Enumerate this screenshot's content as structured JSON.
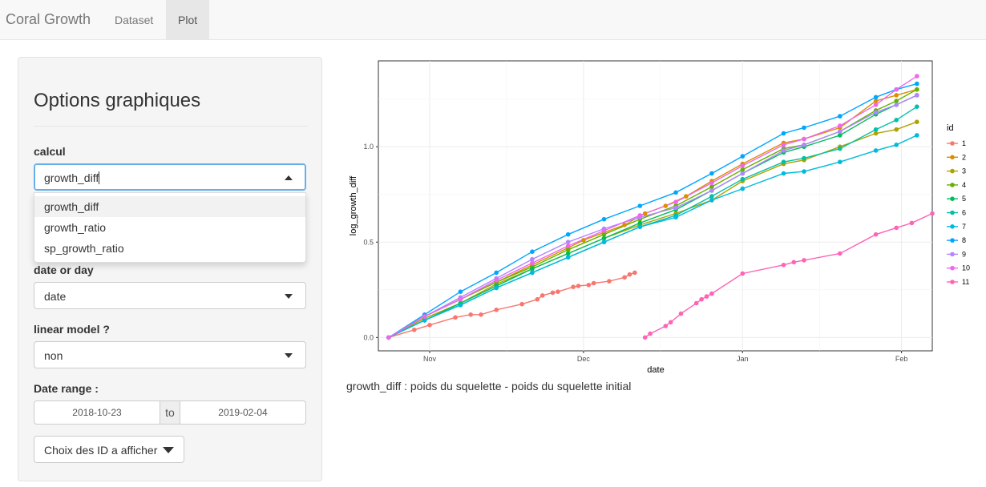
{
  "navbar": {
    "brand": "Coral Growth",
    "tabs": [
      {
        "label": "Dataset",
        "active": false
      },
      {
        "label": "Plot",
        "active": true
      }
    ]
  },
  "sidebar": {
    "title": "Options graphiques",
    "calcul": {
      "label": "calcul",
      "value": "growth_diff",
      "options": [
        "growth_diff",
        "growth_ratio",
        "sp_growth_ratio"
      ],
      "highlighted": "growth_diff"
    },
    "date_or_day": {
      "label": "date or day",
      "value": "date"
    },
    "linear_model": {
      "label": "linear model ?",
      "value": "non"
    },
    "date_range": {
      "label": "Date range :",
      "start": "2018-10-23",
      "separator": "to",
      "end": "2019-02-04"
    },
    "id_button": {
      "label": "Choix des ID a afficher"
    }
  },
  "caption": "growth_diff : poids du squelette - poids du squelette initial",
  "chart_data": {
    "type": "line",
    "xlabel": "date",
    "ylabel": "log_growth_diff",
    "x_ticks": [
      "Nov",
      "Dec",
      "Jan",
      "Feb"
    ],
    "y_ticks": [
      "0.0",
      "0.5",
      "1.0"
    ],
    "xlim": [
      "2018-10-22",
      "2019-02-07"
    ],
    "ylim": [
      -0.07,
      1.45
    ],
    "grid": true,
    "legend_title": "id",
    "legend_position": "right",
    "series": [
      {
        "name": "1",
        "color": "#F8766D",
        "points": [
          [
            "2018-10-24",
            0.0
          ],
          [
            "2018-10-29",
            0.04
          ],
          [
            "2018-11-01",
            0.065
          ],
          [
            "2018-11-06",
            0.105
          ],
          [
            "2018-11-09",
            0.12
          ],
          [
            "2018-11-11",
            0.12
          ],
          [
            "2018-11-14",
            0.145
          ],
          [
            "2018-11-19",
            0.175
          ],
          [
            "2018-11-22",
            0.2
          ],
          [
            "2018-11-23",
            0.22
          ],
          [
            "2018-11-25",
            0.235
          ],
          [
            "2018-11-26",
            0.24
          ],
          [
            "2018-11-29",
            0.265
          ],
          [
            "2018-11-30",
            0.27
          ],
          [
            "2018-12-02",
            0.275
          ],
          [
            "2018-12-03",
            0.285
          ],
          [
            "2018-12-06",
            0.295
          ],
          [
            "2018-12-09",
            0.315
          ],
          [
            "2018-12-10",
            0.33
          ],
          [
            "2018-12-11",
            0.34
          ]
        ]
      },
      {
        "name": "2",
        "color": "#DB8E00",
        "points": [
          [
            "2018-10-24",
            0.0
          ],
          [
            "2018-10-31",
            0.11
          ],
          [
            "2018-11-07",
            0.2
          ],
          [
            "2018-11-14",
            0.29
          ],
          [
            "2018-11-21",
            0.38
          ],
          [
            "2018-11-28",
            0.47
          ],
          [
            "2018-12-01",
            0.51
          ],
          [
            "2018-12-05",
            0.55
          ],
          [
            "2018-12-09",
            0.59
          ],
          [
            "2018-12-13",
            0.65
          ],
          [
            "2018-12-17",
            0.69
          ],
          [
            "2018-12-21",
            0.74
          ],
          [
            "2018-12-26",
            0.82
          ],
          [
            "2019-01-01",
            0.91
          ],
          [
            "2019-01-09",
            1.02
          ],
          [
            "2019-01-13",
            1.04
          ],
          [
            "2019-01-20",
            1.1
          ],
          [
            "2019-01-27",
            1.24
          ],
          [
            "2019-01-31",
            1.27
          ],
          [
            "2019-02-04",
            1.3
          ]
        ]
      },
      {
        "name": "3",
        "color": "#AEA200",
        "points": [
          [
            "2018-10-24",
            0.0
          ],
          [
            "2018-10-31",
            0.1
          ],
          [
            "2018-11-07",
            0.18
          ],
          [
            "2018-11-14",
            0.28
          ],
          [
            "2018-11-21",
            0.36
          ],
          [
            "2018-11-28",
            0.44
          ],
          [
            "2018-12-05",
            0.52
          ],
          [
            "2018-12-12",
            0.59
          ],
          [
            "2018-12-19",
            0.65
          ],
          [
            "2018-12-26",
            0.72
          ],
          [
            "2019-01-01",
            0.82
          ],
          [
            "2019-01-09",
            0.91
          ],
          [
            "2019-01-13",
            0.93
          ],
          [
            "2019-01-20",
            1.0
          ],
          [
            "2019-01-27",
            1.07
          ],
          [
            "2019-01-31",
            1.09
          ],
          [
            "2019-02-04",
            1.13
          ]
        ]
      },
      {
        "name": "4",
        "color": "#64B200",
        "points": [
          [
            "2018-10-24",
            0.0
          ],
          [
            "2018-10-31",
            0.11
          ],
          [
            "2018-11-07",
            0.2
          ],
          [
            "2018-11-14",
            0.29
          ],
          [
            "2018-11-21",
            0.37
          ],
          [
            "2018-11-28",
            0.46
          ],
          [
            "2018-12-05",
            0.54
          ],
          [
            "2018-12-12",
            0.62
          ],
          [
            "2018-12-19",
            0.69
          ],
          [
            "2018-12-26",
            0.79
          ],
          [
            "2019-01-01",
            0.88
          ],
          [
            "2019-01-09",
            0.99
          ],
          [
            "2019-01-13",
            1.01
          ],
          [
            "2019-01-20",
            1.08
          ],
          [
            "2019-01-27",
            1.19
          ],
          [
            "2019-01-31",
            1.24
          ],
          [
            "2019-02-04",
            1.3
          ]
        ]
      },
      {
        "name": "5",
        "color": "#00BD5C",
        "points": [
          [
            "2018-10-24",
            0.0
          ],
          [
            "2018-10-31",
            0.09
          ],
          [
            "2018-11-07",
            0.18
          ],
          [
            "2018-11-14",
            0.27
          ],
          [
            "2018-11-21",
            0.36
          ],
          [
            "2018-11-28",
            0.44
          ],
          [
            "2018-12-05",
            0.52
          ],
          [
            "2018-12-12",
            0.6
          ],
          [
            "2018-12-19",
            0.67
          ],
          [
            "2018-12-26",
            0.77
          ],
          [
            "2019-01-01",
            0.86
          ],
          [
            "2019-01-09",
            0.97
          ],
          [
            "2019-01-13",
            1.0
          ],
          [
            "2019-01-20",
            1.06
          ],
          [
            "2019-01-27",
            1.17
          ],
          [
            "2019-01-31",
            1.22
          ],
          [
            "2019-02-04",
            1.27
          ]
        ]
      },
      {
        "name": "6",
        "color": "#00C1A7",
        "points": [
          [
            "2018-10-24",
            0.0
          ],
          [
            "2018-10-31",
            0.09
          ],
          [
            "2018-11-07",
            0.17
          ],
          [
            "2018-11-14",
            0.26
          ],
          [
            "2018-11-21",
            0.34
          ],
          [
            "2018-11-28",
            0.42
          ],
          [
            "2018-12-05",
            0.5
          ],
          [
            "2018-12-12",
            0.58
          ],
          [
            "2018-12-19",
            0.64
          ],
          [
            "2018-12-26",
            0.74
          ],
          [
            "2019-01-01",
            0.83
          ],
          [
            "2019-01-09",
            0.92
          ],
          [
            "2019-01-13",
            0.94
          ],
          [
            "2019-01-20",
            0.99
          ],
          [
            "2019-01-27",
            1.09
          ],
          [
            "2019-01-31",
            1.14
          ],
          [
            "2019-02-04",
            1.21
          ]
        ]
      },
      {
        "name": "7",
        "color": "#00BADE",
        "points": [
          [
            "2018-10-24",
            0.0
          ],
          [
            "2018-10-31",
            0.09
          ],
          [
            "2018-11-07",
            0.17
          ],
          [
            "2018-11-14",
            0.26
          ],
          [
            "2018-11-21",
            0.34
          ],
          [
            "2018-11-28",
            0.42
          ],
          [
            "2018-12-05",
            0.5
          ],
          [
            "2018-12-12",
            0.58
          ],
          [
            "2018-12-19",
            0.63
          ],
          [
            "2018-12-26",
            0.72
          ],
          [
            "2019-01-01",
            0.78
          ],
          [
            "2019-01-09",
            0.86
          ],
          [
            "2019-01-13",
            0.87
          ],
          [
            "2019-01-20",
            0.92
          ],
          [
            "2019-01-27",
            0.98
          ],
          [
            "2019-01-31",
            1.01
          ],
          [
            "2019-02-04",
            1.06
          ]
        ]
      },
      {
        "name": "8",
        "color": "#00A6FF",
        "points": [
          [
            "2018-10-24",
            0.0
          ],
          [
            "2018-10-31",
            0.12
          ],
          [
            "2018-11-07",
            0.24
          ],
          [
            "2018-11-14",
            0.34
          ],
          [
            "2018-11-21",
            0.45
          ],
          [
            "2018-11-28",
            0.54
          ],
          [
            "2018-12-05",
            0.62
          ],
          [
            "2018-12-12",
            0.69
          ],
          [
            "2018-12-19",
            0.76
          ],
          [
            "2018-12-26",
            0.86
          ],
          [
            "2019-01-01",
            0.95
          ],
          [
            "2019-01-09",
            1.07
          ],
          [
            "2019-01-13",
            1.1
          ],
          [
            "2019-01-20",
            1.16
          ],
          [
            "2019-01-27",
            1.26
          ],
          [
            "2019-01-31",
            1.3
          ],
          [
            "2019-02-04",
            1.33
          ]
        ]
      },
      {
        "name": "9",
        "color": "#B385FF",
        "points": [
          [
            "2018-10-24",
            0.0
          ],
          [
            "2018-10-31",
            0.11
          ],
          [
            "2018-11-07",
            0.21
          ],
          [
            "2018-11-14",
            0.31
          ],
          [
            "2018-11-21",
            0.41
          ],
          [
            "2018-11-28",
            0.5
          ],
          [
            "2018-12-05",
            0.57
          ],
          [
            "2018-12-12",
            0.63
          ],
          [
            "2018-12-19",
            0.68
          ],
          [
            "2018-12-26",
            0.77
          ],
          [
            "2019-01-01",
            0.86
          ],
          [
            "2019-01-09",
            0.98
          ],
          [
            "2019-01-13",
            1.01
          ],
          [
            "2019-01-20",
            1.08
          ],
          [
            "2019-01-27",
            1.18
          ],
          [
            "2019-01-31",
            1.22
          ],
          [
            "2019-02-04",
            1.27
          ]
        ]
      },
      {
        "name": "10",
        "color": "#EF67EB",
        "points": [
          [
            "2018-10-24",
            0.0
          ],
          [
            "2018-10-31",
            0.11
          ],
          [
            "2018-11-07",
            0.2
          ],
          [
            "2018-11-14",
            0.3
          ],
          [
            "2018-11-21",
            0.39
          ],
          [
            "2018-11-28",
            0.48
          ],
          [
            "2018-12-05",
            0.56
          ],
          [
            "2018-12-12",
            0.64
          ],
          [
            "2018-12-19",
            0.71
          ],
          [
            "2018-12-26",
            0.81
          ],
          [
            "2019-01-01",
            0.9
          ],
          [
            "2019-01-09",
            1.01
          ],
          [
            "2019-01-13",
            1.04
          ],
          [
            "2019-01-20",
            1.11
          ],
          [
            "2019-01-27",
            1.22
          ],
          [
            "2019-01-31",
            1.3
          ],
          [
            "2019-02-04",
            1.37
          ]
        ]
      },
      {
        "name": "11",
        "color": "#FF63B6",
        "points": [
          [
            "2018-12-13",
            0.0
          ],
          [
            "2018-12-14",
            0.02
          ],
          [
            "2018-12-17",
            0.06
          ],
          [
            "2018-12-18",
            0.08
          ],
          [
            "2018-12-20",
            0.125
          ],
          [
            "2018-12-23",
            0.18
          ],
          [
            "2018-12-24",
            0.2
          ],
          [
            "2018-12-25",
            0.215
          ],
          [
            "2018-12-26",
            0.23
          ],
          [
            "2019-01-01",
            0.335
          ],
          [
            "2019-01-09",
            0.38
          ],
          [
            "2019-01-11",
            0.395
          ],
          [
            "2019-01-13",
            0.405
          ],
          [
            "2019-01-20",
            0.44
          ],
          [
            "2019-01-27",
            0.54
          ],
          [
            "2019-01-31",
            0.575
          ],
          [
            "2019-02-03",
            0.6
          ],
          [
            "2019-02-07",
            0.65
          ]
        ]
      }
    ]
  }
}
